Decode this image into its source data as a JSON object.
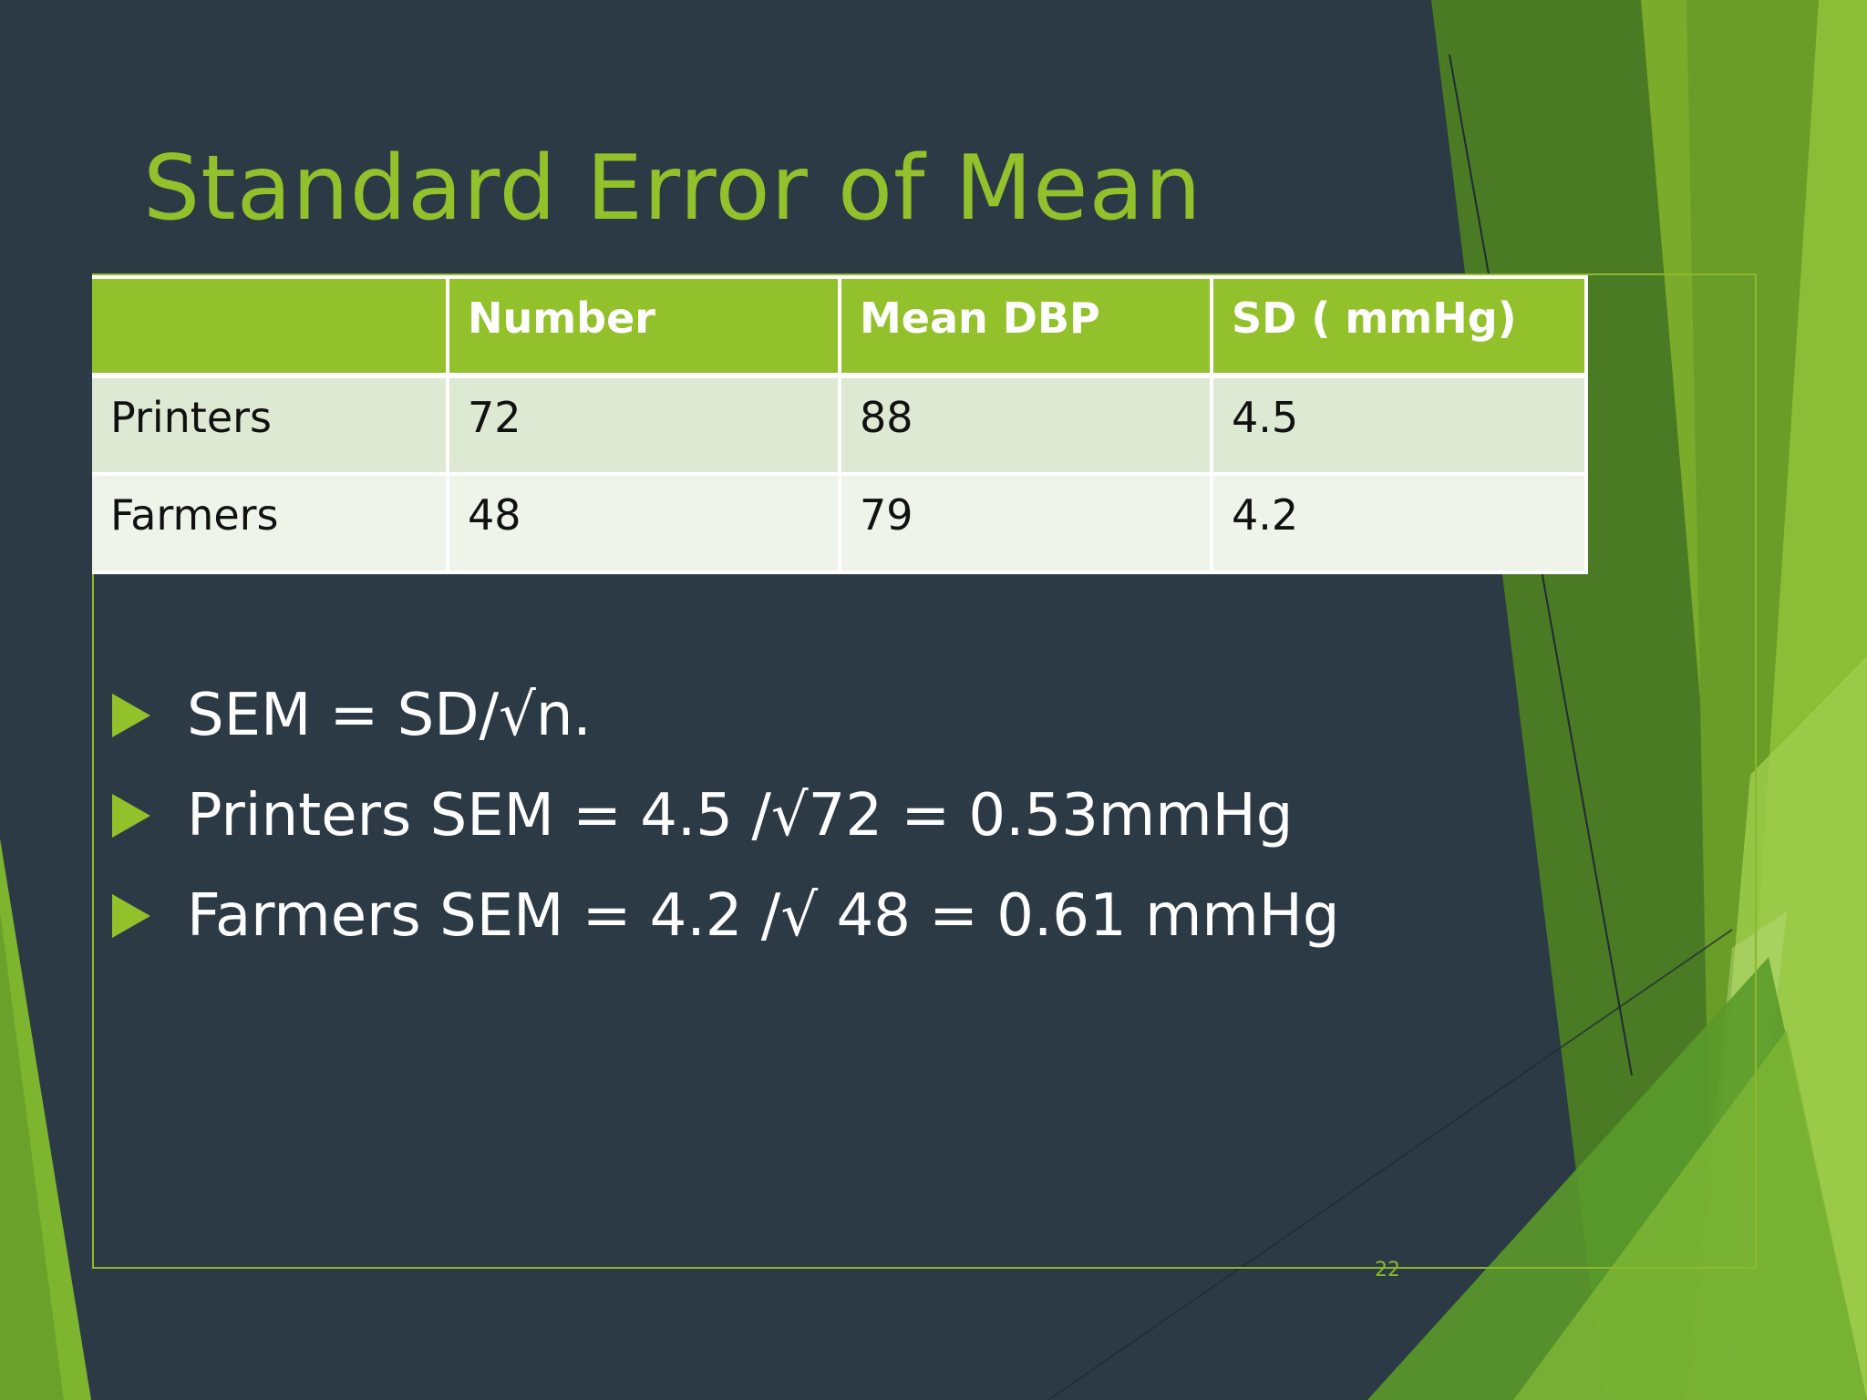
{
  "slide": {
    "title": "Standard Error of Mean",
    "page_number": "22"
  },
  "table": {
    "headers": [
      "",
      "Number",
      "Mean DBP",
      "SD ( mmHg)"
    ],
    "rows": [
      [
        "Printers",
        "72",
        "88",
        "4.5"
      ],
      [
        "Farmers",
        "48",
        "79",
        "4.2"
      ]
    ]
  },
  "bullets": [
    "SEM = SD/√n.",
    "Printers SEM = 4.5 /√72 = 0.53mmHg",
    "Farmers SEM = 4.2 /√ 48 = 0.61 mmHg"
  ],
  "colors": {
    "background": "#2c3a45",
    "accent": "#93c12b",
    "row_alt_1": "#dde9d2",
    "row_alt_2": "#eef4ea"
  }
}
